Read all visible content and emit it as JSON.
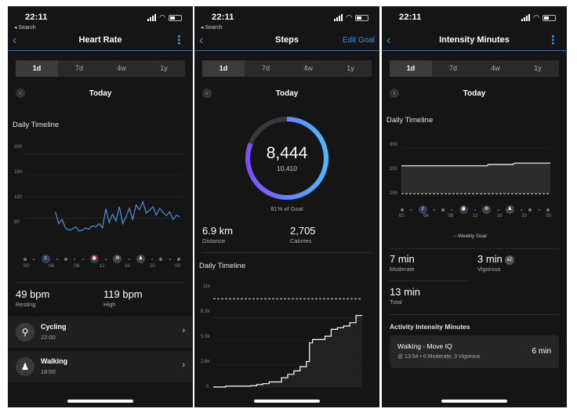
{
  "status": {
    "time": "22:11",
    "back_label": "◂ Search"
  },
  "segments": [
    "1d",
    "7d",
    "4w",
    "1y"
  ],
  "today_label": "Today",
  "heart": {
    "title": "Heart Rate",
    "timeline_title": "Daily Timeline",
    "y_labels": [
      "200",
      "160",
      "120",
      "80"
    ],
    "x_labels": [
      "00",
      "04",
      "08",
      "12",
      "16",
      "20",
      "00"
    ],
    "resting": {
      "value": "49 bpm",
      "label": "Resting"
    },
    "high": {
      "value": "119 bpm",
      "label": "High"
    },
    "activities": [
      {
        "name": "Cycling",
        "time": "22:00"
      },
      {
        "name": "Walking",
        "time": "18:00"
      }
    ],
    "chart_data": {
      "type": "line",
      "ylim": [
        40,
        210
      ],
      "xlim": [
        0,
        24
      ],
      "series": [
        {
          "color": "#4f8fd6",
          "x": [
            4.5,
            5,
            5.5,
            6,
            6.5,
            7,
            7.5,
            8,
            8.5,
            9,
            9.5,
            10,
            10.5,
            11,
            11.5,
            12,
            12.5,
            13,
            13.5,
            14,
            14.5,
            15,
            15.5,
            16,
            16.5,
            17,
            17.5,
            18,
            18.5,
            19,
            19.5,
            20,
            20.5,
            21,
            21.5,
            22,
            22.5,
            23
          ],
          "y": [
            92,
            70,
            78,
            62,
            58,
            60,
            64,
            56,
            58,
            62,
            60,
            66,
            64,
            70,
            62,
            98,
            72,
            88,
            75,
            102,
            70,
            83,
            99,
            78,
            105,
            96,
            111,
            90,
            95,
            102,
            86,
            99,
            91,
            85,
            92,
            78,
            86,
            83
          ]
        }
      ]
    }
  },
  "steps": {
    "title": "Steps",
    "edit_label": "Edit Goal",
    "value": "8,444",
    "goal": "10,410",
    "percent_label": "81% of Goal",
    "distance": {
      "value": "6.9 km",
      "label": "Distance"
    },
    "calories": {
      "value": "2,705",
      "label": "Calories"
    },
    "timeline_title": "Daily Timeline",
    "y_labels": [
      "11k",
      "8.2k",
      "5.5k",
      "2.6k",
      "0"
    ],
    "chart_data": {
      "type": "area",
      "goal": 10410,
      "ylim": [
        0,
        11000
      ],
      "xlim": [
        0,
        24
      ],
      "series": [
        {
          "x": [
            0,
            2,
            4,
            6,
            7,
            8,
            9,
            10,
            11,
            12,
            13,
            14,
            15,
            15.5,
            16,
            17,
            18,
            19,
            20,
            21,
            22,
            23,
            24
          ],
          "y": [
            0,
            100,
            100,
            150,
            300,
            400,
            600,
            600,
            1100,
            1500,
            1900,
            2400,
            3000,
            5200,
            5600,
            5600,
            6000,
            6800,
            7000,
            7200,
            7600,
            8444,
            8444
          ]
        }
      ]
    },
    "ring_fraction": 0.81
  },
  "intensity": {
    "title": "Intensity Minutes",
    "timeline_title": "Daily Timeline",
    "y_labels": [
      "350",
      "250",
      "150"
    ],
    "x_labels": [
      "00",
      "04",
      "08",
      "12",
      "16",
      "20",
      "00"
    ],
    "weekly_goal_label": "Weekly Goal",
    "moderate": {
      "value": "7 min",
      "label": "Moderate"
    },
    "vigorous": {
      "value": "3 min",
      "label": "Vigorous",
      "badge": "x2"
    },
    "total": {
      "value": "13 min",
      "label": "Total"
    },
    "aim_title": "Activity Intensity Minutes",
    "card": {
      "title": "Walking - Move IQ",
      "sub": "@ 13:54 • 0 Moderate, 3 Vigorous",
      "right": "6 min"
    },
    "chart_data": {
      "type": "line",
      "ylim": [
        120,
        360
      ],
      "xlim": [
        0,
        24
      ],
      "goal": 150,
      "series": [
        {
          "x": [
            0,
            13.8,
            14,
            18,
            18.2,
            24
          ],
          "y": [
            272,
            272,
            278,
            278,
            284,
            284
          ]
        }
      ]
    }
  }
}
